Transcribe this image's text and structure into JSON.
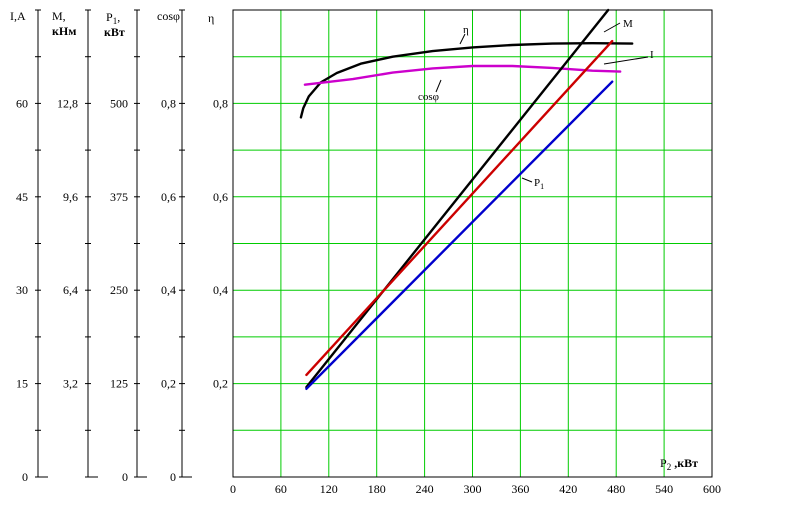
{
  "chart_data": {
    "type": "line",
    "xlabel_main": "P",
    "xlabel_sub": "2",
    "xlabel_unit": " ,кВт",
    "x_ticks": [
      "0",
      "60",
      "120",
      "180",
      "240",
      "300",
      "360",
      "420",
      "480",
      "540",
      "600"
    ],
    "xlim": [
      0,
      600
    ],
    "grid": true,
    "left_axes": [
      {
        "key": "I",
        "title": [
          "I,A"
        ],
        "ticks": [
          "0",
          "15",
          "30",
          "45",
          "60"
        ],
        "tick_values": [
          0,
          15,
          30,
          45,
          60
        ],
        "range": [
          0,
          75
        ]
      },
      {
        "key": "M",
        "title": [
          "M,",
          "кНм"
        ],
        "ticks": [
          "3,2",
          "6,4",
          "9,6",
          "12,8"
        ],
        "tick_values": [
          3.2,
          6.4,
          9.6,
          12.8
        ],
        "range": [
          0,
          16
        ]
      },
      {
        "key": "P1",
        "title_main": "P",
        "title_sub": "1",
        "title_rest": ",",
        "title_unit": "кВт",
        "ticks": [
          "0",
          "125",
          "250",
          "375",
          "500"
        ],
        "tick_values": [
          0,
          125,
          250,
          375,
          500
        ],
        "range": [
          0,
          625
        ]
      },
      {
        "key": "cos",
        "title": [
          "cosφ"
        ],
        "ticks": [
          "0",
          "0,2",
          "0,4",
          "0,6",
          "0,8"
        ],
        "tick_values": [
          0,
          0.2,
          0.4,
          0.6,
          0.8
        ],
        "range": [
          0,
          1
        ]
      }
    ],
    "right_axis": {
      "title": "η",
      "ticks": [
        "0,2",
        "0,4",
        "0,6",
        "0,8"
      ],
      "tick_values": [
        0.2,
        0.4,
        0.6,
        0.8
      ],
      "range": [
        0,
        1
      ]
    },
    "series": [
      {
        "name": "η",
        "axis": "eta",
        "color": "#000000",
        "x": [
          85,
          88,
          95,
          110,
          130,
          160,
          200,
          250,
          300,
          350,
          400,
          450,
          500
        ],
        "y": [
          0.77,
          0.79,
          0.815,
          0.845,
          0.865,
          0.885,
          0.9,
          0.912,
          0.92,
          0.925,
          0.928,
          0.929,
          0.928
        ]
      },
      {
        "name": "cosφ",
        "axis": "cos",
        "color": "#cc00cc",
        "x": [
          90,
          150,
          200,
          250,
          300,
          350,
          400,
          450,
          485
        ],
        "y": [
          0.84,
          0.852,
          0.866,
          0.875,
          0.88,
          0.88,
          0.876,
          0.87,
          0.868
        ]
      },
      {
        "name": "M",
        "axis": "M",
        "color": "#000000",
        "x": [
          92,
          470
        ],
        "y": [
          3.08,
          16.0
        ]
      },
      {
        "name": "I",
        "axis": "I",
        "color": "#cc0000",
        "x": [
          92,
          475
        ],
        "y": [
          16.4,
          70.0
        ]
      },
      {
        "name": "P",
        "name_sub": "1",
        "axis": "P1",
        "color": "#0000cc",
        "x": [
          92,
          475
        ],
        "y": [
          118,
          529
        ]
      }
    ],
    "annotations": [
      {
        "series": "η",
        "label": "η"
      },
      {
        "series": "cosφ",
        "label": "cosφ"
      },
      {
        "series": "M",
        "label": "M"
      },
      {
        "series": "I",
        "label": "I"
      },
      {
        "series": "P",
        "label": "P",
        "sub": "1"
      }
    ]
  }
}
